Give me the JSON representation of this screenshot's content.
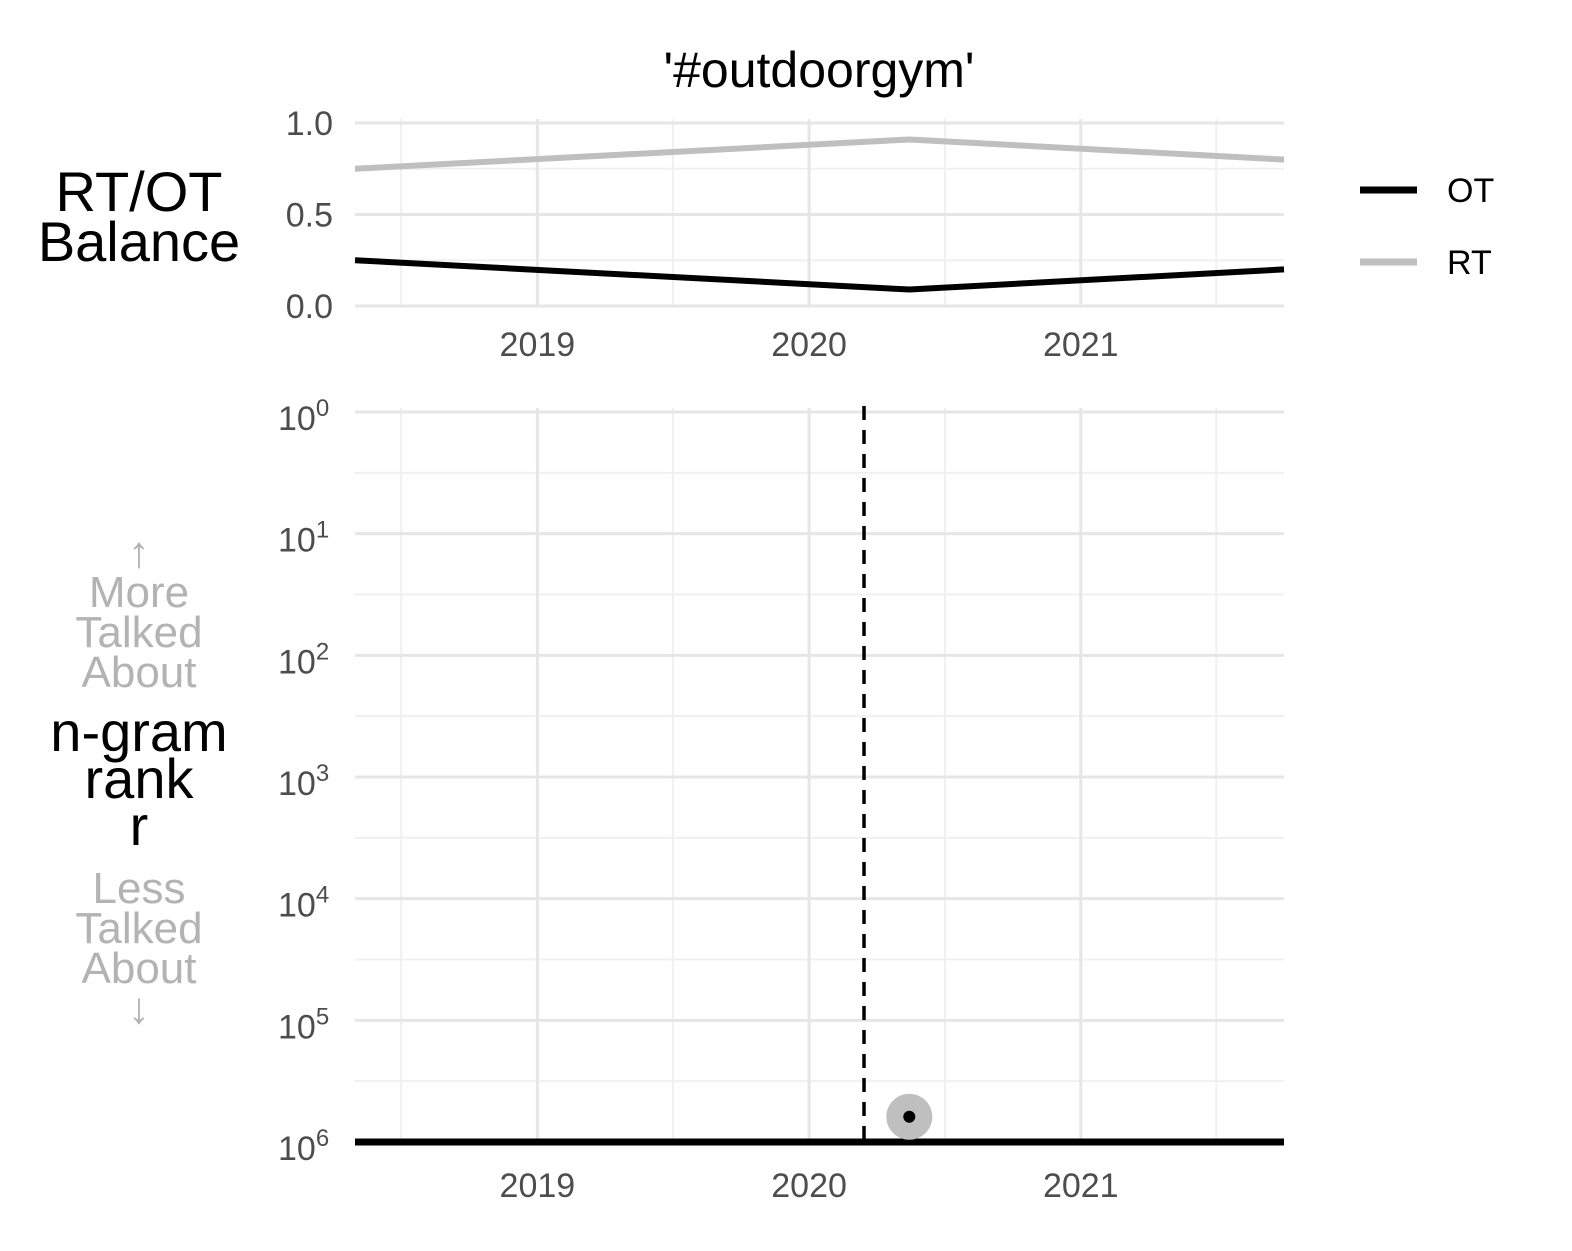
{
  "chart_data": [
    {
      "type": "line",
      "title": "'#outdoorgym'",
      "ylabel_lines": [
        "RT/OT",
        "Balance"
      ],
      "x_ticks": [
        "2019",
        "2020",
        "2021"
      ],
      "y_ticks": [
        "0.0",
        "0.5",
        "1.0"
      ],
      "xlim": [
        "2018-05-01",
        "2021-10-01"
      ],
      "ylim": [
        0,
        1
      ],
      "grid": true,
      "legend_position": "right",
      "series": [
        {
          "name": "OT",
          "color": "#000000",
          "x": [
            "2018-05-01",
            "2020-05-15",
            "2021-10-01"
          ],
          "y": [
            0.25,
            0.09,
            0.2
          ]
        },
        {
          "name": "RT",
          "color": "#bfbfbf",
          "x": [
            "2018-05-01",
            "2020-05-15",
            "2021-10-01"
          ],
          "y": [
            0.75,
            0.91,
            0.8
          ]
        }
      ]
    },
    {
      "type": "line",
      "ylabel_lines": [
        "n-gram",
        "rank",
        "r"
      ],
      "annotation_top": [
        "↑",
        "More",
        "Talked",
        "About"
      ],
      "annotation_bottom": [
        "Less",
        "Talked",
        "About",
        "↓"
      ],
      "x_ticks": [
        "2019",
        "2020",
        "2021"
      ],
      "y_ticks": [
        "10^0",
        "10^1",
        "10^2",
        "10^3",
        "10^4",
        "10^5",
        "10^6"
      ],
      "y_scale": "log10-reversed",
      "xlim": [
        "2018-05-01",
        "2021-10-01"
      ],
      "ylim": [
        1,
        1000000
      ],
      "grid": true,
      "vline": {
        "x": "2020-03-15",
        "style": "dashed",
        "color": "#000000"
      },
      "series": [
        {
          "name": "OT",
          "color": "#000000",
          "x": [
            "2018-05-01",
            "2021-10-01"
          ],
          "y": [
            1000000,
            1000000
          ]
        },
        {
          "name": "RT",
          "color": "#bfbfbf",
          "x": [
            "2018-05-01",
            "2021-10-01"
          ],
          "y": [
            1000000,
            1000000
          ]
        }
      ],
      "points": [
        {
          "x": "2020-05-15",
          "y": 620000,
          "series": "OT",
          "color": "#000000"
        },
        {
          "x": "2020-05-15",
          "y": 620000,
          "series": "RT",
          "color": "#bfbfbf"
        }
      ]
    }
  ]
}
